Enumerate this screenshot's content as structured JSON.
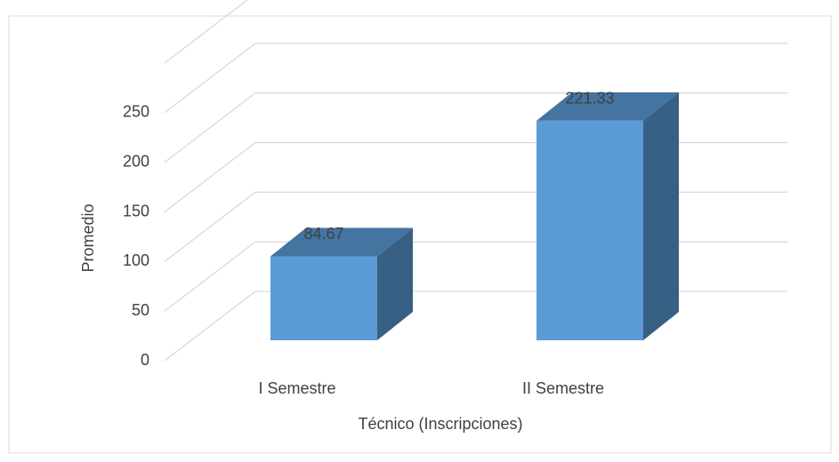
{
  "chart_data": {
    "type": "bar3d",
    "categories": [
      "I Semestre",
      "II Semestre"
    ],
    "values": [
      84.67,
      221.33
    ],
    "color": "#5b9bd5",
    "ylim": [
      0,
      300
    ],
    "yticks": [
      0,
      50,
      100,
      150,
      200,
      250
    ],
    "ylabel": "Promedio",
    "xlabel": "Técnico (Inscripciones)",
    "grid": true
  }
}
